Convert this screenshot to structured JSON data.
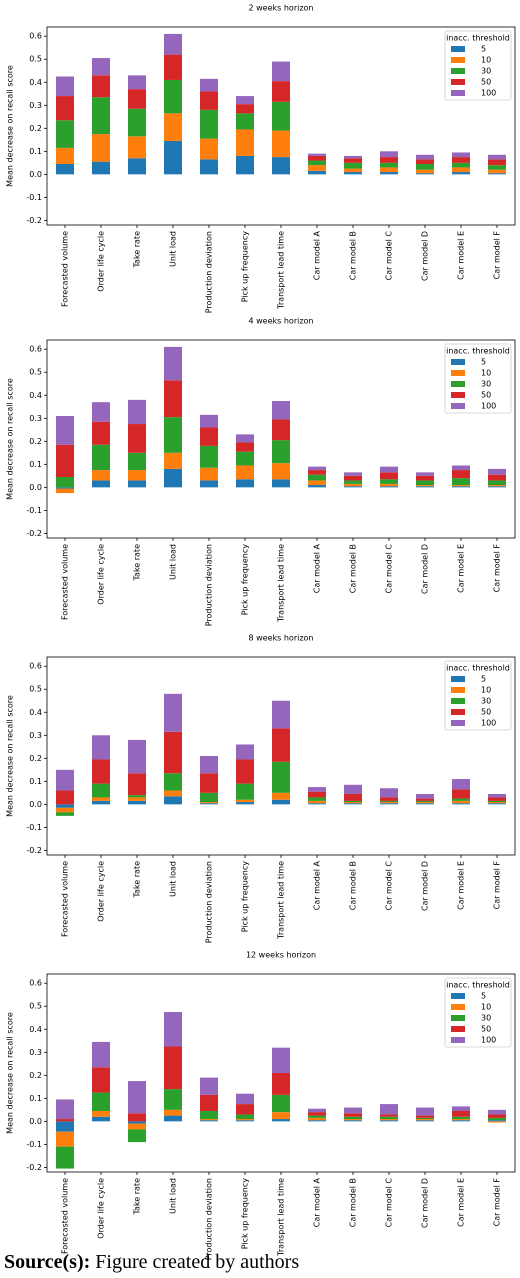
{
  "chart_data": [
    {
      "type": "bar",
      "stacked": true,
      "title": "2 weeks horizon",
      "ylabel": "Mean decrease on recall score",
      "categories": [
        "Forecasted volume",
        "Order life cycle",
        "Take rate",
        "Unit load",
        "Production deviation",
        "Pick up frequency",
        "Transport lead time",
        "Car model A",
        "Car model B",
        "Car model C",
        "Car model D",
        "Car model E",
        "Car model F"
      ],
      "series": [
        {
          "name": "5",
          "color": "#1f77b4",
          "values": [
            0.045,
            0.055,
            0.07,
            0.145,
            0.065,
            0.08,
            0.075,
            0.015,
            0.01,
            0.01,
            0.005,
            0.01,
            0.005
          ]
        },
        {
          "name": "10",
          "color": "#ff7f0e",
          "values": [
            0.07,
            0.12,
            0.095,
            0.12,
            0.09,
            0.115,
            0.115,
            0.025,
            0.015,
            0.02,
            0.015,
            0.02,
            0.015
          ]
        },
        {
          "name": "30",
          "color": "#2ca02c",
          "values": [
            0.12,
            0.16,
            0.12,
            0.145,
            0.125,
            0.07,
            0.125,
            0.02,
            0.025,
            0.02,
            0.025,
            0.02,
            0.02
          ]
        },
        {
          "name": "50",
          "color": "#d62728",
          "values": [
            0.105,
            0.095,
            0.085,
            0.11,
            0.08,
            0.04,
            0.09,
            0.02,
            0.02,
            0.025,
            0.02,
            0.025,
            0.025
          ]
        },
        {
          "name": "100",
          "color": "#9467bd",
          "values": [
            0.085,
            0.075,
            0.06,
            0.09,
            0.055,
            0.035,
            0.085,
            0.01,
            0.01,
            0.025,
            0.02,
            0.02,
            0.02
          ]
        }
      ],
      "ylim": [
        -0.22,
        0.64
      ],
      "yticks": [
        -0.2,
        -0.1,
        {
          "value": 0,
          "label": "0.0"
        },
        0.1,
        0.2,
        0.3,
        0.4,
        0.5,
        0.6
      ],
      "legend_title": "inacc. threshold",
      "legend": "upper right"
    },
    {
      "type": "bar",
      "stacked": true,
      "title": "4 weeks horizon",
      "ylabel": "Mean decrease on recall score",
      "categories": [
        "Forecasted volume",
        "Order life cycle",
        "Take rate",
        "Unit load",
        "Production deviation",
        "Pick up frequency",
        "Transport lead time",
        "Car model A",
        "Car model B",
        "Car model C",
        "Car model D",
        "Car model E",
        "Car model F"
      ],
      "series": [
        {
          "name": "5",
          "color": "#1f77b4",
          "values": [
            -0.005,
            0.03,
            0.03,
            0.08,
            0.03,
            0.035,
            0.035,
            0.01,
            0.005,
            0.005,
            0.005,
            0.005,
            0.005
          ]
        },
        {
          "name": "10",
          "color": "#ff7f0e",
          "values": [
            -0.02,
            0.045,
            0.045,
            0.07,
            0.055,
            0.06,
            0.07,
            0.02,
            0.01,
            0.01,
            0.005,
            0.005,
            0.005
          ]
        },
        {
          "name": "30",
          "color": "#2ca02c",
          "values": [
            0.045,
            0.11,
            0.075,
            0.155,
            0.095,
            0.06,
            0.1,
            0.025,
            0.015,
            0.02,
            0.02,
            0.03,
            0.02
          ]
        },
        {
          "name": "50",
          "color": "#d62728",
          "values": [
            0.14,
            0.1,
            0.125,
            0.16,
            0.08,
            0.04,
            0.09,
            0.02,
            0.02,
            0.03,
            0.02,
            0.035,
            0.025
          ]
        },
        {
          "name": "100",
          "color": "#9467bd",
          "values": [
            0.125,
            0.085,
            0.105,
            0.145,
            0.055,
            0.035,
            0.08,
            0.015,
            0.015,
            0.025,
            0.015,
            0.02,
            0.025
          ]
        }
      ],
      "ylim": [
        -0.22,
        0.64
      ],
      "yticks": [
        -0.2,
        -0.1,
        {
          "value": 0,
          "label": "0.0"
        },
        0.1,
        0.2,
        0.3,
        0.4,
        0.5,
        0.6
      ],
      "legend_title": "inacc. threshold",
      "legend": "upper right"
    },
    {
      "type": "bar",
      "stacked": true,
      "title": "8 weeks horizon",
      "ylabel": "Mean decrease on recall score",
      "categories": [
        "Forecasted volume",
        "Order life cycle",
        "Take rate",
        "Unit load",
        "Production deviation",
        "Pick up frequency",
        "Transport lead time",
        "Car model A",
        "Car model B",
        "Car model C",
        "Car model D",
        "Car model E",
        "Car model F"
      ],
      "series": [
        {
          "name": "5",
          "color": "#1f77b4",
          "values": [
            -0.015,
            0.015,
            0.015,
            0.035,
            0.005,
            0.01,
            0.02,
            0.005,
            0.005,
            0.005,
            0.005,
            0.005,
            0.005
          ]
        },
        {
          "name": "10",
          "color": "#ff7f0e",
          "values": [
            -0.02,
            0.015,
            0.015,
            0.025,
            0.005,
            0.01,
            0.03,
            0.01,
            0.005,
            0.005,
            0.005,
            0.01,
            0.005
          ]
        },
        {
          "name": "30",
          "color": "#2ca02c",
          "values": [
            -0.015,
            0.06,
            0.01,
            0.075,
            0.04,
            0.07,
            0.135,
            0.015,
            0.005,
            0.005,
            0.005,
            0.01,
            0.005
          ]
        },
        {
          "name": "50",
          "color": "#d62728",
          "values": [
            0.06,
            0.105,
            0.095,
            0.18,
            0.085,
            0.105,
            0.145,
            0.025,
            0.03,
            0.015,
            0.01,
            0.04,
            0.015
          ]
        },
        {
          "name": "100",
          "color": "#9467bd",
          "values": [
            0.09,
            0.105,
            0.145,
            0.165,
            0.075,
            0.065,
            0.12,
            0.02,
            0.04,
            0.04,
            0.02,
            0.045,
            0.015
          ]
        }
      ],
      "ylim": [
        -0.22,
        0.64
      ],
      "yticks": [
        -0.2,
        -0.1,
        {
          "value": 0,
          "label": "0.0"
        },
        0.1,
        0.2,
        0.3,
        0.4,
        0.5,
        0.6
      ],
      "legend_title": "inacc. threshold",
      "legend": "upper right"
    },
    {
      "type": "bar",
      "stacked": true,
      "title": "12 weeks horizon",
      "ylabel": "Mean decrease on recall score",
      "categories": [
        "Forecasted volume",
        "Order life cycle",
        "Take rate",
        "Unit load",
        "Production deviation",
        "Pick up frequency",
        "Transport lead time",
        "Car model A",
        "Car model B",
        "Car model C",
        "Car model D",
        "Car model E",
        "Car model F"
      ],
      "series": [
        {
          "name": "5",
          "color": "#1f77b4",
          "values": [
            -0.045,
            0.02,
            -0.01,
            0.025,
            0.005,
            0.005,
            0.01,
            0.005,
            0.005,
            0.005,
            0.005,
            0.005,
            0.005
          ]
        },
        {
          "name": "10",
          "color": "#ff7f0e",
          "values": [
            -0.065,
            0.025,
            -0.025,
            0.025,
            0.005,
            0.005,
            0.03,
            0.01,
            0.005,
            0.005,
            0.005,
            0.005,
            -0.005
          ]
        },
        {
          "name": "30",
          "color": "#2ca02c",
          "values": [
            -0.095,
            0.08,
            -0.055,
            0.09,
            0.035,
            0.02,
            0.075,
            0.01,
            0.01,
            0.01,
            0.005,
            0.01,
            0.01
          ]
        },
        {
          "name": "50",
          "color": "#d62728",
          "values": [
            0.01,
            0.11,
            0.035,
            0.185,
            0.07,
            0.045,
            0.095,
            0.015,
            0.015,
            0.01,
            0.01,
            0.025,
            0.015
          ]
        },
        {
          "name": "100",
          "color": "#9467bd",
          "values": [
            0.085,
            0.11,
            0.14,
            0.15,
            0.075,
            0.045,
            0.11,
            0.015,
            0.025,
            0.045,
            0.035,
            0.02,
            0.02
          ]
        }
      ],
      "ylim": [
        -0.22,
        0.64
      ],
      "yticks": [
        -0.2,
        -0.1,
        {
          "value": 0,
          "label": "0.0"
        },
        0.1,
        0.2,
        0.3,
        0.4,
        0.5,
        0.6
      ],
      "legend_title": "inacc. threshold",
      "legend": "upper right"
    }
  ],
  "source": {
    "label": "Source(s):",
    "text": "Figure created by authors"
  }
}
